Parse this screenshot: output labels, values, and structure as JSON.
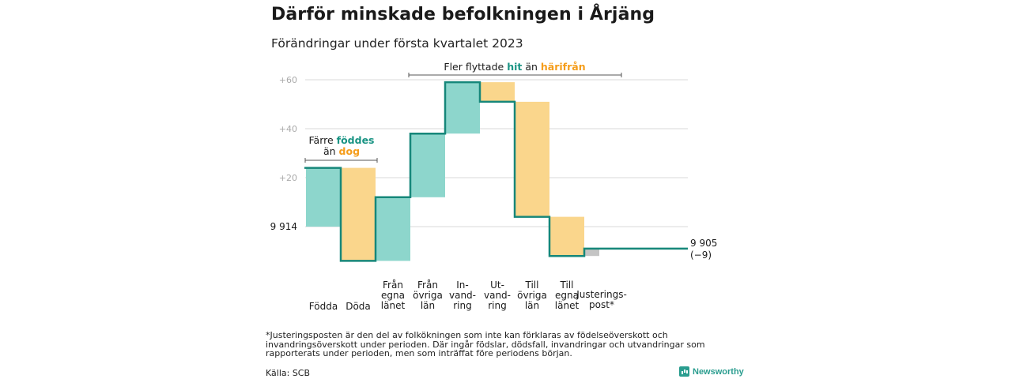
{
  "header": {
    "title": "Därför minskade befolkningen i Årjäng",
    "subtitle": "Förändringar under första kvartalet 2023"
  },
  "colors": {
    "increase": "#8dd6cc",
    "decrease": "#fad68c",
    "adjustment": "#c4c4c4",
    "line": "#16877a",
    "hit_text": "#1a9484",
    "harifran_text": "#f59d1b",
    "grid": "#d9d9d9",
    "tick_text": "#aaaaaa"
  },
  "chart_data": {
    "type": "waterfall",
    "title": "Därför minskade befolkningen i Årjäng",
    "subtitle": "Förändringar under första kvartalet 2023",
    "start_value": 9914,
    "start_label": "9 914",
    "end_value": 9905,
    "end_label": "9 905",
    "end_change_label": "(−9)",
    "y_ticks": [
      {
        "value": 20,
        "label": "+20"
      },
      {
        "value": 40,
        "label": "+40"
      },
      {
        "value": 60,
        "label": "+60"
      }
    ],
    "categories": [
      {
        "label": [
          "Födda"
        ],
        "change": 24
      },
      {
        "label": [
          "Döda"
        ],
        "change": -38
      },
      {
        "label": [
          "Från",
          "egna",
          "länet"
        ],
        "change": 26
      },
      {
        "label": [
          "Från",
          "övriga",
          "län"
        ],
        "change": 26
      },
      {
        "label": [
          "In-",
          "vand-",
          "ring"
        ],
        "change": 21
      },
      {
        "label": [
          "Ut-",
          "vand-",
          "ring"
        ],
        "change": -8
      },
      {
        "label": [
          "Till",
          "övriga",
          "län"
        ],
        "change": -47
      },
      {
        "label": [
          "Till",
          "egna",
          "länet"
        ],
        "change": -16
      },
      {
        "label": [
          "Justerings-",
          "post*"
        ],
        "change": 3
      }
    ],
    "annotations": [
      {
        "id": "birth",
        "text": [
          "Färre ",
          "föddes",
          " än ",
          "dog"
        ]
      },
      {
        "id": "migration",
        "text": [
          "Fler flyttade ",
          "hit",
          " än ",
          "härifrån"
        ]
      }
    ],
    "footnote": "*Justeringsposten är den del av folkökningen som inte kan förklaras av födelseöverskott och invandringsöverskott under perioden. Där ingår födslar, dödsfall, invandringar och utvandringar som rapporterats under perioden, men som inträffat före periodens början.",
    "source": "Källa: SCB"
  },
  "brand": "Newsworthy"
}
